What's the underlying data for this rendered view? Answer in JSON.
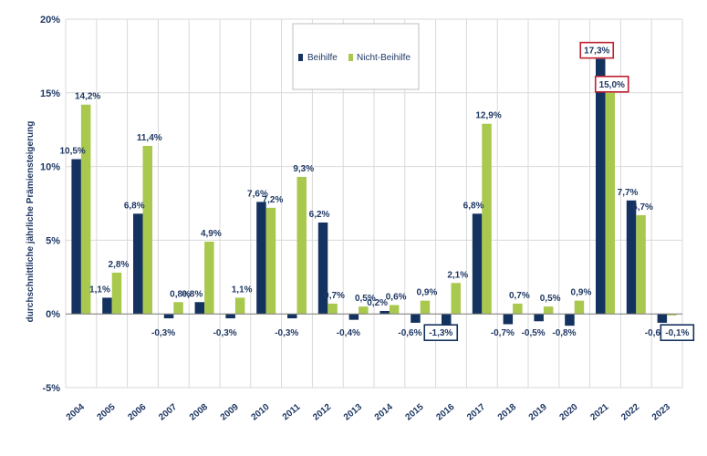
{
  "chart_data": {
    "type": "bar",
    "ylabel": "durchschnittliche jährliche Prämiensteigerung",
    "ylim": [
      -5,
      20
    ],
    "yticks": [
      {
        "value": -5,
        "label": "-5%"
      },
      {
        "value": 0,
        "label": "0%"
      },
      {
        "value": 5,
        "label": "5%"
      },
      {
        "value": 10,
        "label": "10%"
      },
      {
        "value": 15,
        "label": "15%"
      },
      {
        "value": 20,
        "label": "20%"
      }
    ],
    "grid": true,
    "legend_position": "top-center",
    "categories": [
      "2004",
      "2005",
      "2006",
      "2007",
      "2008",
      "2009",
      "2010",
      "2011",
      "2012",
      "2013",
      "2014",
      "2015",
      "2016",
      "2017",
      "2018",
      "2019",
      "2020",
      "2021",
      "2022",
      "2023"
    ],
    "series": [
      {
        "name": "Beihilfe",
        "color": "#14325f",
        "values": [
          10.5,
          1.1,
          6.8,
          -0.3,
          0.8,
          -0.3,
          7.6,
          -0.3,
          6.2,
          -0.4,
          0.2,
          -0.6,
          -1.3,
          6.8,
          -0.7,
          -0.5,
          -0.8,
          17.3,
          7.7,
          -0.6
        ],
        "labels": [
          "10,5%",
          "1,1%",
          "6,8%",
          "-0,3%",
          "0,8%",
          "-0,3%",
          "7,6%",
          "-0,3%",
          "6,2%",
          "-0,4%",
          "0,2%",
          "-0,6%",
          "-1,3%",
          "6,8%",
          "-0,7%",
          "-0,5%",
          "-0,8%",
          "17,3%",
          "7,7%",
          "-0,6%"
        ]
      },
      {
        "name": "Nicht-Beihilfe",
        "color": "#a9c84e",
        "values": [
          14.2,
          2.8,
          11.4,
          0.8,
          4.9,
          1.1,
          7.2,
          9.3,
          0.7,
          0.5,
          0.6,
          0.9,
          2.1,
          12.9,
          0.7,
          0.5,
          0.9,
          15.0,
          6.7,
          -0.1
        ],
        "labels": [
          "14,2%",
          "2,8%",
          "11,4%",
          "0,8%",
          "4,9%",
          "1,1%",
          "7,2%",
          "9,3%",
          "0,7%",
          "0,5%",
          "0,6%",
          "0,9%",
          "2,1%",
          "12,9%",
          "0,7%",
          "0,5%",
          "0,9%",
          "15,0%",
          "6,7%",
          "-0,1%"
        ]
      }
    ],
    "highlights": [
      {
        "series": 0,
        "index": 12,
        "color": "#14325f"
      },
      {
        "series": 0,
        "index": 17,
        "color": "#c0202f"
      },
      {
        "series": 1,
        "index": 17,
        "color": "#c0202f"
      },
      {
        "series": 1,
        "index": 19,
        "color": "#14325f"
      }
    ]
  }
}
